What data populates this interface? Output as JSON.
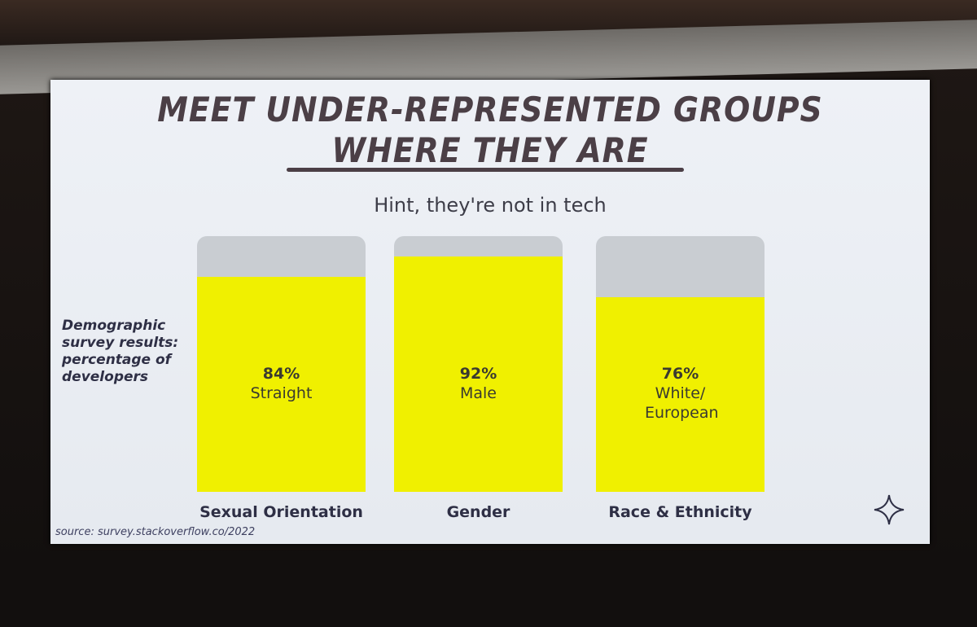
{
  "chart_data": {
    "type": "bar",
    "title": [
      "MEET UNDER-REPRESENTED GROUPS",
      "WHERE THEY ARE"
    ],
    "subtitle": "Hint, they're not in tech",
    "y_label": "Demographic survey results: percentage of developers",
    "categories": [
      "Sexual Orientation",
      "Gender",
      "Race & Ethnicity"
    ],
    "values": [
      84,
      92,
      76
    ],
    "value_labels": [
      "84%",
      "92%",
      "76%"
    ],
    "bar_texts": [
      "Straight",
      "Male",
      "White/ European"
    ],
    "ylim": [
      0,
      100
    ],
    "color": "#f0f000",
    "track_color": "#c9cdd2",
    "source": "source: survey.stackoverflow.co/2022"
  }
}
